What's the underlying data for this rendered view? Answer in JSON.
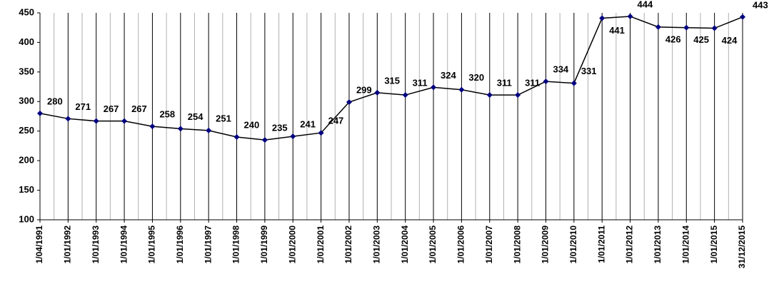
{
  "chart_data": {
    "type": "line",
    "categories": [
      "1/04/1991",
      "1/01/1992",
      "1/01/1993",
      "1/01/1994",
      "1/01/1995",
      "1/01/1996",
      "1/01/1997",
      "1/01/1998",
      "1/01/1999",
      "1/01/2000",
      "1/01/2001",
      "1/01/2002",
      "1/01/2003",
      "1/01/2004",
      "1/01/2005",
      "1/01/2006",
      "1/01/2007",
      "1/01/2008",
      "1/01/2009",
      "1/01/2010",
      "1/01/2011",
      "1/01/2012",
      "1/01/2013",
      "1/01/2014",
      "1/01/2015",
      "31/12/2015"
    ],
    "values": [
      280,
      271,
      267,
      267,
      258,
      254,
      251,
      240,
      235,
      241,
      247,
      299,
      315,
      311,
      324,
      320,
      311,
      311,
      334,
      331,
      441,
      444,
      426,
      425,
      424,
      443
    ],
    "color": "#000080",
    "line_color": "#000000",
    "ylim": [
      100,
      450
    ],
    "yticks": [
      100,
      150,
      200,
      250,
      300,
      350,
      400,
      450
    ],
    "grid": true
  }
}
